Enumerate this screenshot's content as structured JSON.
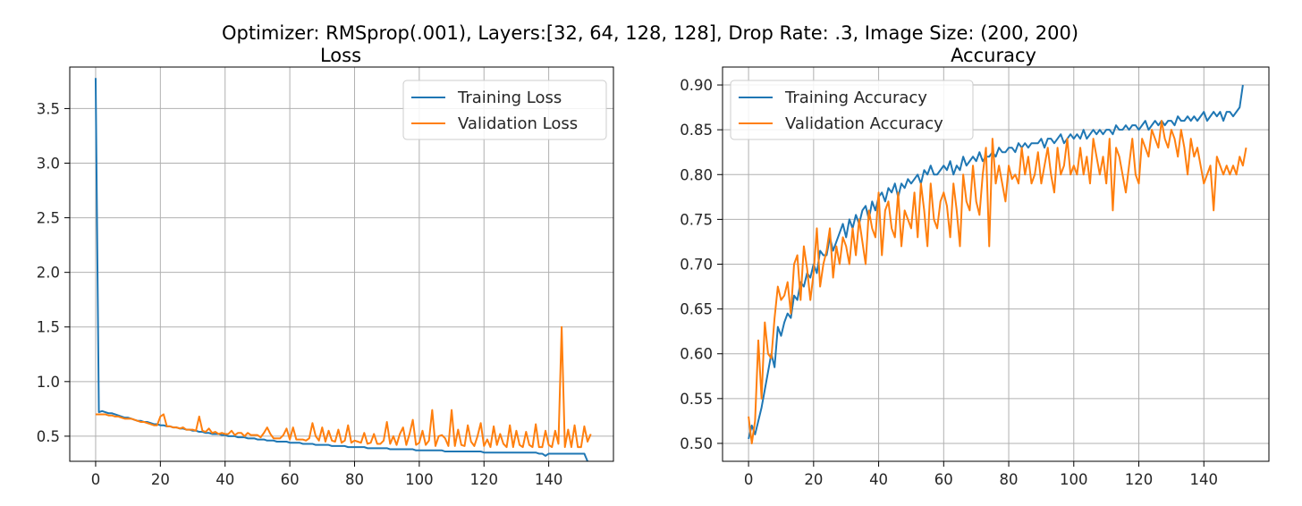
{
  "figure": {
    "suptitle": "Optimizer: RMSprop(.001), Layers:[32, 64, 128, 128], Drop Rate: .3, Image Size: (200, 200)"
  },
  "chart_data": [
    {
      "type": "line",
      "title": "Loss",
      "xlabel": "",
      "ylabel": "",
      "xlim": [
        -8,
        160
      ],
      "ylim": [
        0.27,
        3.88
      ],
      "xticks": [
        0,
        20,
        40,
        60,
        80,
        100,
        120,
        140
      ],
      "yticks": [
        0.5,
        1.0,
        1.5,
        2.0,
        2.5,
        3.0,
        3.5
      ],
      "ytick_labels": [
        "0.5",
        "1.0",
        "1.5",
        "2.0",
        "2.5",
        "3.0",
        "3.5"
      ],
      "grid": true,
      "legend": "upper right",
      "series": [
        {
          "name": "Training Loss",
          "color": "#1f77b4",
          "values": [
            3.78,
            0.72,
            0.73,
            0.72,
            0.71,
            0.71,
            0.7,
            0.69,
            0.68,
            0.67,
            0.67,
            0.66,
            0.65,
            0.64,
            0.64,
            0.63,
            0.63,
            0.62,
            0.61,
            0.61,
            0.6,
            0.6,
            0.59,
            0.59,
            0.58,
            0.58,
            0.57,
            0.57,
            0.56,
            0.56,
            0.55,
            0.55,
            0.54,
            0.54,
            0.53,
            0.53,
            0.52,
            0.52,
            0.52,
            0.51,
            0.51,
            0.5,
            0.5,
            0.5,
            0.49,
            0.49,
            0.49,
            0.48,
            0.48,
            0.48,
            0.47,
            0.47,
            0.47,
            0.46,
            0.46,
            0.46,
            0.45,
            0.45,
            0.45,
            0.45,
            0.44,
            0.44,
            0.44,
            0.44,
            0.43,
            0.43,
            0.43,
            0.43,
            0.42,
            0.42,
            0.42,
            0.42,
            0.42,
            0.41,
            0.41,
            0.41,
            0.41,
            0.41,
            0.4,
            0.4,
            0.4,
            0.4,
            0.4,
            0.4,
            0.39,
            0.39,
            0.39,
            0.39,
            0.39,
            0.39,
            0.39,
            0.38,
            0.38,
            0.38,
            0.38,
            0.38,
            0.38,
            0.38,
            0.38,
            0.37,
            0.37,
            0.37,
            0.37,
            0.37,
            0.37,
            0.37,
            0.37,
            0.37,
            0.36,
            0.36,
            0.36,
            0.36,
            0.36,
            0.36,
            0.36,
            0.36,
            0.36,
            0.36,
            0.36,
            0.36,
            0.35,
            0.35,
            0.35,
            0.35,
            0.35,
            0.35,
            0.35,
            0.35,
            0.35,
            0.35,
            0.35,
            0.35,
            0.35,
            0.35,
            0.35,
            0.35,
            0.35,
            0.34,
            0.34,
            0.32,
            0.34,
            0.34,
            0.34,
            0.34,
            0.34,
            0.34,
            0.34,
            0.34,
            0.34,
            0.34,
            0.34,
            0.34,
            0.27
          ]
        },
        {
          "name": "Validation Loss",
          "color": "#ff7f0e",
          "values": [
            0.7,
            0.7,
            0.7,
            0.7,
            0.69,
            0.69,
            0.68,
            0.68,
            0.67,
            0.66,
            0.66,
            0.66,
            0.65,
            0.64,
            0.63,
            0.63,
            0.62,
            0.61,
            0.6,
            0.6,
            0.68,
            0.7,
            0.59,
            0.59,
            0.58,
            0.58,
            0.57,
            0.58,
            0.56,
            0.56,
            0.56,
            0.55,
            0.68,
            0.55,
            0.54,
            0.57,
            0.53,
            0.54,
            0.52,
            0.53,
            0.52,
            0.52,
            0.55,
            0.51,
            0.53,
            0.53,
            0.5,
            0.53,
            0.51,
            0.51,
            0.51,
            0.49,
            0.53,
            0.58,
            0.52,
            0.48,
            0.48,
            0.48,
            0.51,
            0.57,
            0.47,
            0.58,
            0.47,
            0.47,
            0.47,
            0.46,
            0.48,
            0.62,
            0.5,
            0.46,
            0.58,
            0.45,
            0.55,
            0.46,
            0.45,
            0.56,
            0.44,
            0.46,
            0.6,
            0.44,
            0.46,
            0.45,
            0.44,
            0.53,
            0.43,
            0.44,
            0.52,
            0.43,
            0.43,
            0.46,
            0.63,
            0.43,
            0.5,
            0.42,
            0.52,
            0.58,
            0.42,
            0.52,
            0.65,
            0.42,
            0.44,
            0.55,
            0.42,
            0.46,
            0.74,
            0.41,
            0.5,
            0.51,
            0.48,
            0.41,
            0.74,
            0.41,
            0.56,
            0.42,
            0.41,
            0.6,
            0.45,
            0.41,
            0.5,
            0.62,
            0.41,
            0.47,
            0.4,
            0.59,
            0.42,
            0.52,
            0.43,
            0.4,
            0.6,
            0.4,
            0.55,
            0.42,
            0.4,
            0.54,
            0.42,
            0.4,
            0.61,
            0.4,
            0.4,
            0.55,
            0.42,
            0.4,
            0.55,
            0.43,
            1.5,
            0.4,
            0.56,
            0.4,
            0.6,
            0.4,
            0.4,
            0.59,
            0.45,
            0.52
          ]
        }
      ]
    },
    {
      "type": "line",
      "title": "Accuracy",
      "xlabel": "",
      "ylabel": "",
      "xlim": [
        -8,
        160
      ],
      "ylim": [
        0.48,
        0.92
      ],
      "xticks": [
        0,
        20,
        40,
        60,
        80,
        100,
        120,
        140
      ],
      "yticks": [
        0.5,
        0.55,
        0.6,
        0.65,
        0.7,
        0.75,
        0.8,
        0.85,
        0.9
      ],
      "ytick_labels": [
        "0.50",
        "0.55",
        "0.60",
        "0.65",
        "0.70",
        "0.75",
        "0.80",
        "0.85",
        "0.90"
      ],
      "grid": true,
      "legend": "upper left",
      "series": [
        {
          "name": "Training Accuracy",
          "color": "#1f77b4",
          "values": [
            0.505,
            0.52,
            0.51,
            0.525,
            0.54,
            0.56,
            0.58,
            0.6,
            0.585,
            0.63,
            0.62,
            0.635,
            0.645,
            0.64,
            0.665,
            0.66,
            0.68,
            0.675,
            0.69,
            0.685,
            0.7,
            0.69,
            0.715,
            0.71,
            0.71,
            0.73,
            0.715,
            0.725,
            0.735,
            0.745,
            0.73,
            0.75,
            0.74,
            0.755,
            0.745,
            0.76,
            0.765,
            0.75,
            0.77,
            0.76,
            0.775,
            0.78,
            0.77,
            0.785,
            0.78,
            0.79,
            0.775,
            0.79,
            0.785,
            0.795,
            0.79,
            0.795,
            0.8,
            0.79,
            0.805,
            0.8,
            0.81,
            0.8,
            0.8,
            0.805,
            0.81,
            0.805,
            0.815,
            0.8,
            0.81,
            0.805,
            0.82,
            0.81,
            0.815,
            0.82,
            0.815,
            0.825,
            0.815,
            0.82,
            0.82,
            0.825,
            0.82,
            0.83,
            0.825,
            0.825,
            0.83,
            0.83,
            0.825,
            0.835,
            0.83,
            0.835,
            0.83,
            0.835,
            0.835,
            0.835,
            0.84,
            0.83,
            0.84,
            0.84,
            0.835,
            0.84,
            0.845,
            0.835,
            0.84,
            0.845,
            0.84,
            0.845,
            0.84,
            0.85,
            0.84,
            0.845,
            0.85,
            0.845,
            0.85,
            0.845,
            0.85,
            0.85,
            0.845,
            0.855,
            0.85,
            0.85,
            0.855,
            0.85,
            0.855,
            0.855,
            0.85,
            0.855,
            0.86,
            0.85,
            0.855,
            0.86,
            0.855,
            0.86,
            0.855,
            0.86,
            0.86,
            0.855,
            0.865,
            0.86,
            0.86,
            0.865,
            0.86,
            0.865,
            0.86,
            0.865,
            0.87,
            0.86,
            0.865,
            0.87,
            0.865,
            0.87,
            0.86,
            0.87,
            0.87,
            0.865,
            0.87,
            0.875,
            0.9
          ]
        },
        {
          "name": "Validation Accuracy",
          "color": "#ff7f0e",
          "values": [
            0.53,
            0.5,
            0.525,
            0.615,
            0.55,
            0.635,
            0.6,
            0.595,
            0.64,
            0.675,
            0.66,
            0.665,
            0.68,
            0.645,
            0.7,
            0.71,
            0.66,
            0.72,
            0.695,
            0.66,
            0.69,
            0.74,
            0.675,
            0.7,
            0.715,
            0.74,
            0.685,
            0.72,
            0.7,
            0.73,
            0.72,
            0.7,
            0.74,
            0.71,
            0.75,
            0.725,
            0.7,
            0.76,
            0.74,
            0.73,
            0.78,
            0.71,
            0.76,
            0.77,
            0.74,
            0.73,
            0.78,
            0.72,
            0.76,
            0.75,
            0.74,
            0.78,
            0.73,
            0.79,
            0.76,
            0.72,
            0.79,
            0.75,
            0.74,
            0.77,
            0.78,
            0.765,
            0.73,
            0.79,
            0.76,
            0.72,
            0.8,
            0.77,
            0.76,
            0.81,
            0.77,
            0.755,
            0.8,
            0.83,
            0.72,
            0.84,
            0.79,
            0.81,
            0.79,
            0.77,
            0.81,
            0.795,
            0.8,
            0.79,
            0.83,
            0.8,
            0.82,
            0.79,
            0.8,
            0.825,
            0.79,
            0.81,
            0.83,
            0.8,
            0.78,
            0.83,
            0.8,
            0.81,
            0.84,
            0.8,
            0.81,
            0.8,
            0.83,
            0.8,
            0.82,
            0.79,
            0.84,
            0.82,
            0.8,
            0.82,
            0.79,
            0.84,
            0.76,
            0.83,
            0.82,
            0.8,
            0.78,
            0.81,
            0.84,
            0.8,
            0.79,
            0.84,
            0.83,
            0.82,
            0.85,
            0.84,
            0.83,
            0.86,
            0.84,
            0.83,
            0.85,
            0.84,
            0.82,
            0.85,
            0.83,
            0.8,
            0.84,
            0.82,
            0.83,
            0.81,
            0.79,
            0.8,
            0.81,
            0.76,
            0.82,
            0.81,
            0.8,
            0.81,
            0.8,
            0.81,
            0.8,
            0.82,
            0.81,
            0.83
          ]
        }
      ]
    }
  ]
}
